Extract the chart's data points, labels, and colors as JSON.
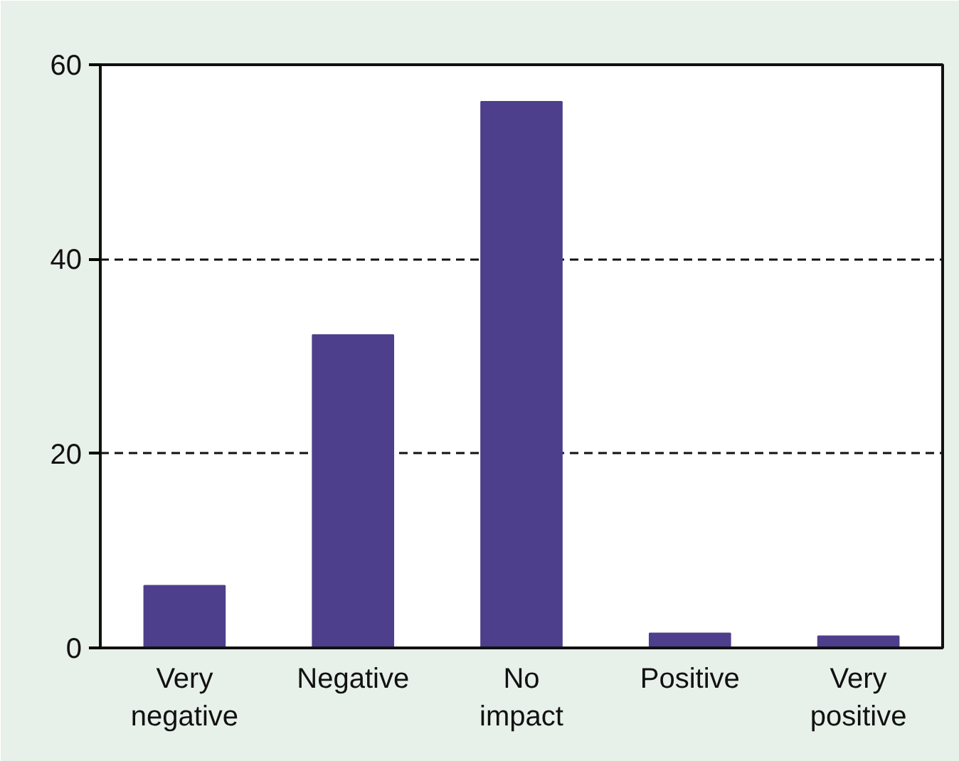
{
  "chart_data": {
    "type": "bar",
    "categories": [
      "Very negative",
      "Negative",
      "No impact",
      "Positive",
      "Very positive"
    ],
    "values": [
      6.4,
      32.2,
      56.2,
      1.5,
      1.2
    ],
    "color": "#4e3f8c",
    "ylim": [
      0,
      60
    ],
    "yticks": [
      0,
      20,
      40,
      60
    ],
    "grid": "y"
  }
}
